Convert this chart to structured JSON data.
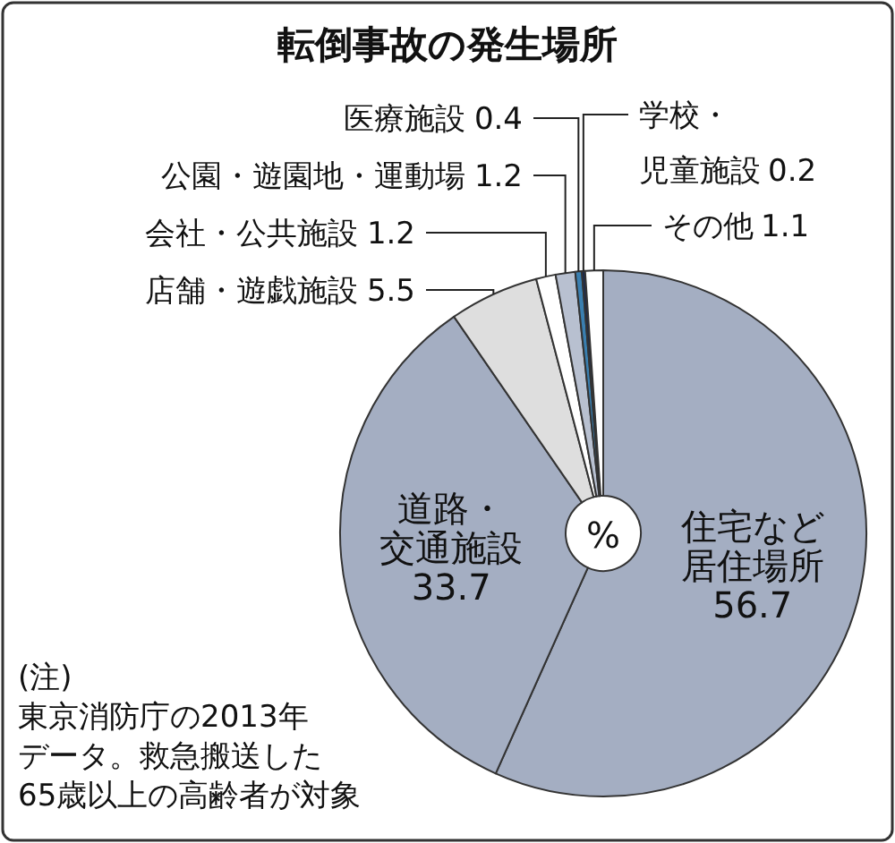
{
  "chart_data": {
    "type": "donut",
    "title": "転倒事故の発生場所",
    "categories": [
      "住宅など居住場所",
      "道路・交通施設",
      "店舗・遊戯施設",
      "会社・公共施設",
      "公園・遊園地・運動場",
      "医療施設",
      "学校・児童施設",
      "その他"
    ],
    "values": [
      56.7,
      33.7,
      5.5,
      1.2,
      1.2,
      0.4,
      0.2,
      1.1
    ],
    "colors": [
      "#a4aec2",
      "#a4aec2",
      "#dedede",
      "#ffffff",
      "#b8c0d0",
      "#3a7fb0",
      "#1a2a50",
      "#ffffff"
    ],
    "data_labels": true,
    "annotations": [
      "%",
      "(注)",
      "東京消防庁の2013年",
      "データ。救急搬送した",
      "65歳以上の高齢者が対象"
    ]
  }
}
